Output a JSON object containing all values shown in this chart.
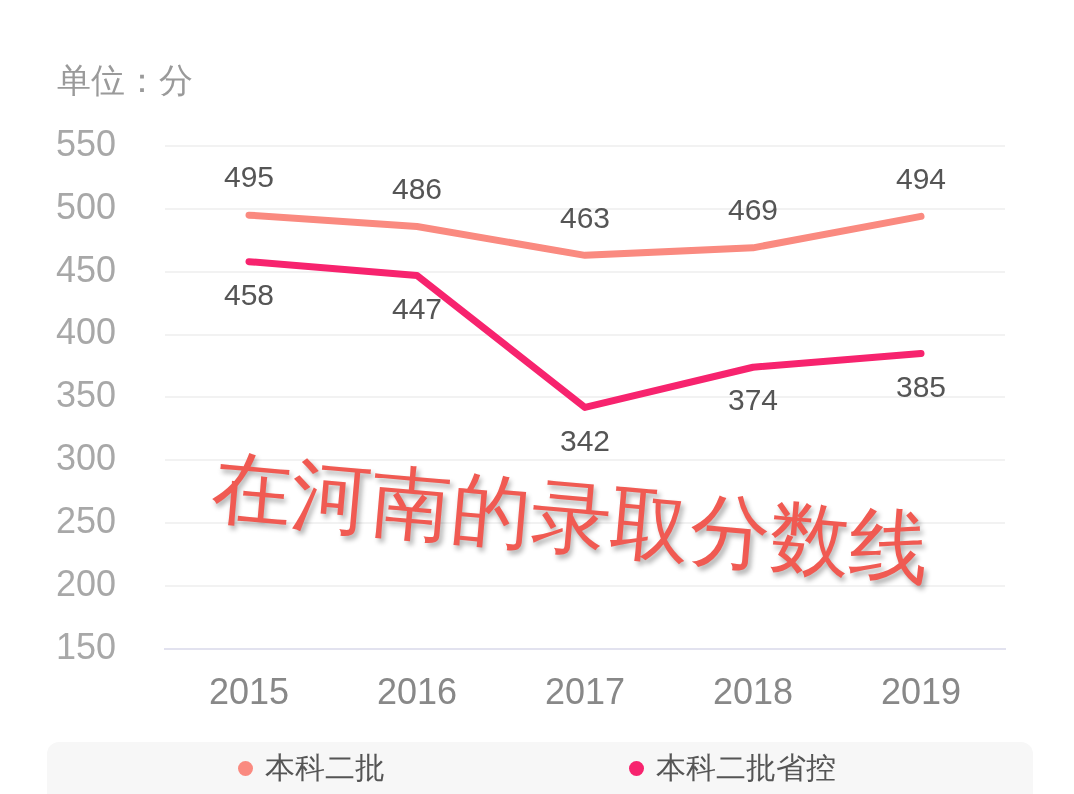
{
  "chart_data": {
    "type": "line",
    "ylabel": "单位：分",
    "annotations": [
      "在河南的录取分数线"
    ],
    "categories": [
      "2015",
      "2016",
      "2017",
      "2018",
      "2019"
    ],
    "series": [
      {
        "name": "本科二批",
        "color": "#fa8a80",
        "values": [
          495,
          486,
          463,
          469,
          494
        ]
      },
      {
        "name": "本科二批省控",
        "color": "#f7236e",
        "values": [
          458,
          447,
          342,
          374,
          385
        ]
      }
    ],
    "ylim": [
      150,
      550
    ],
    "yticks": [
      150,
      200,
      250,
      300,
      350,
      400,
      450,
      500,
      550
    ],
    "grid": "y",
    "legend": "bottom",
    "marker": "none",
    "data_labels": true
  }
}
